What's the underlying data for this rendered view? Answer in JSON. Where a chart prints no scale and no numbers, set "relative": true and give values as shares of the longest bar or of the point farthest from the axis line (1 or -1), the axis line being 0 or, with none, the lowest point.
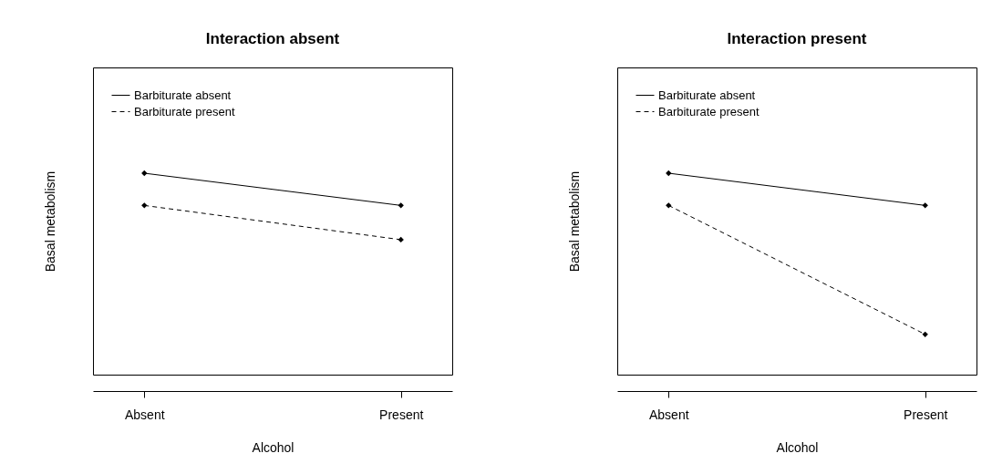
{
  "chart_data": [
    {
      "type": "line",
      "title": "Interaction absent",
      "xlabel": "Alcohol",
      "ylabel": "Basal metabolism",
      "categories": [
        "Absent",
        "Present"
      ],
      "relative": true,
      "legend": "top left",
      "marker": "diamond",
      "grid": false,
      "series": [
        {
          "name": "Barbiturate absent",
          "color": "#000000",
          "line_style": "solid",
          "values": [
            1,
            0.84
          ]
        },
        {
          "name": "Barbiturate present",
          "color": "#000000",
          "line_style": "dashed",
          "values": [
            0.84,
            0.67
          ]
        }
      ]
    },
    {
      "type": "line",
      "title": "Interaction present",
      "xlabel": "Alcohol",
      "ylabel": "Basal metabolism",
      "categories": [
        "Absent",
        "Present"
      ],
      "relative": true,
      "legend": "top left",
      "marker": "diamond",
      "grid": false,
      "series": [
        {
          "name": "Barbiturate absent",
          "color": "#000000",
          "line_style": "solid",
          "values": [
            1,
            0.84
          ]
        },
        {
          "name": "Barbiturate present",
          "color": "#000000",
          "line_style": "dashed",
          "values": [
            0.84,
            0.2
          ]
        }
      ]
    }
  ]
}
